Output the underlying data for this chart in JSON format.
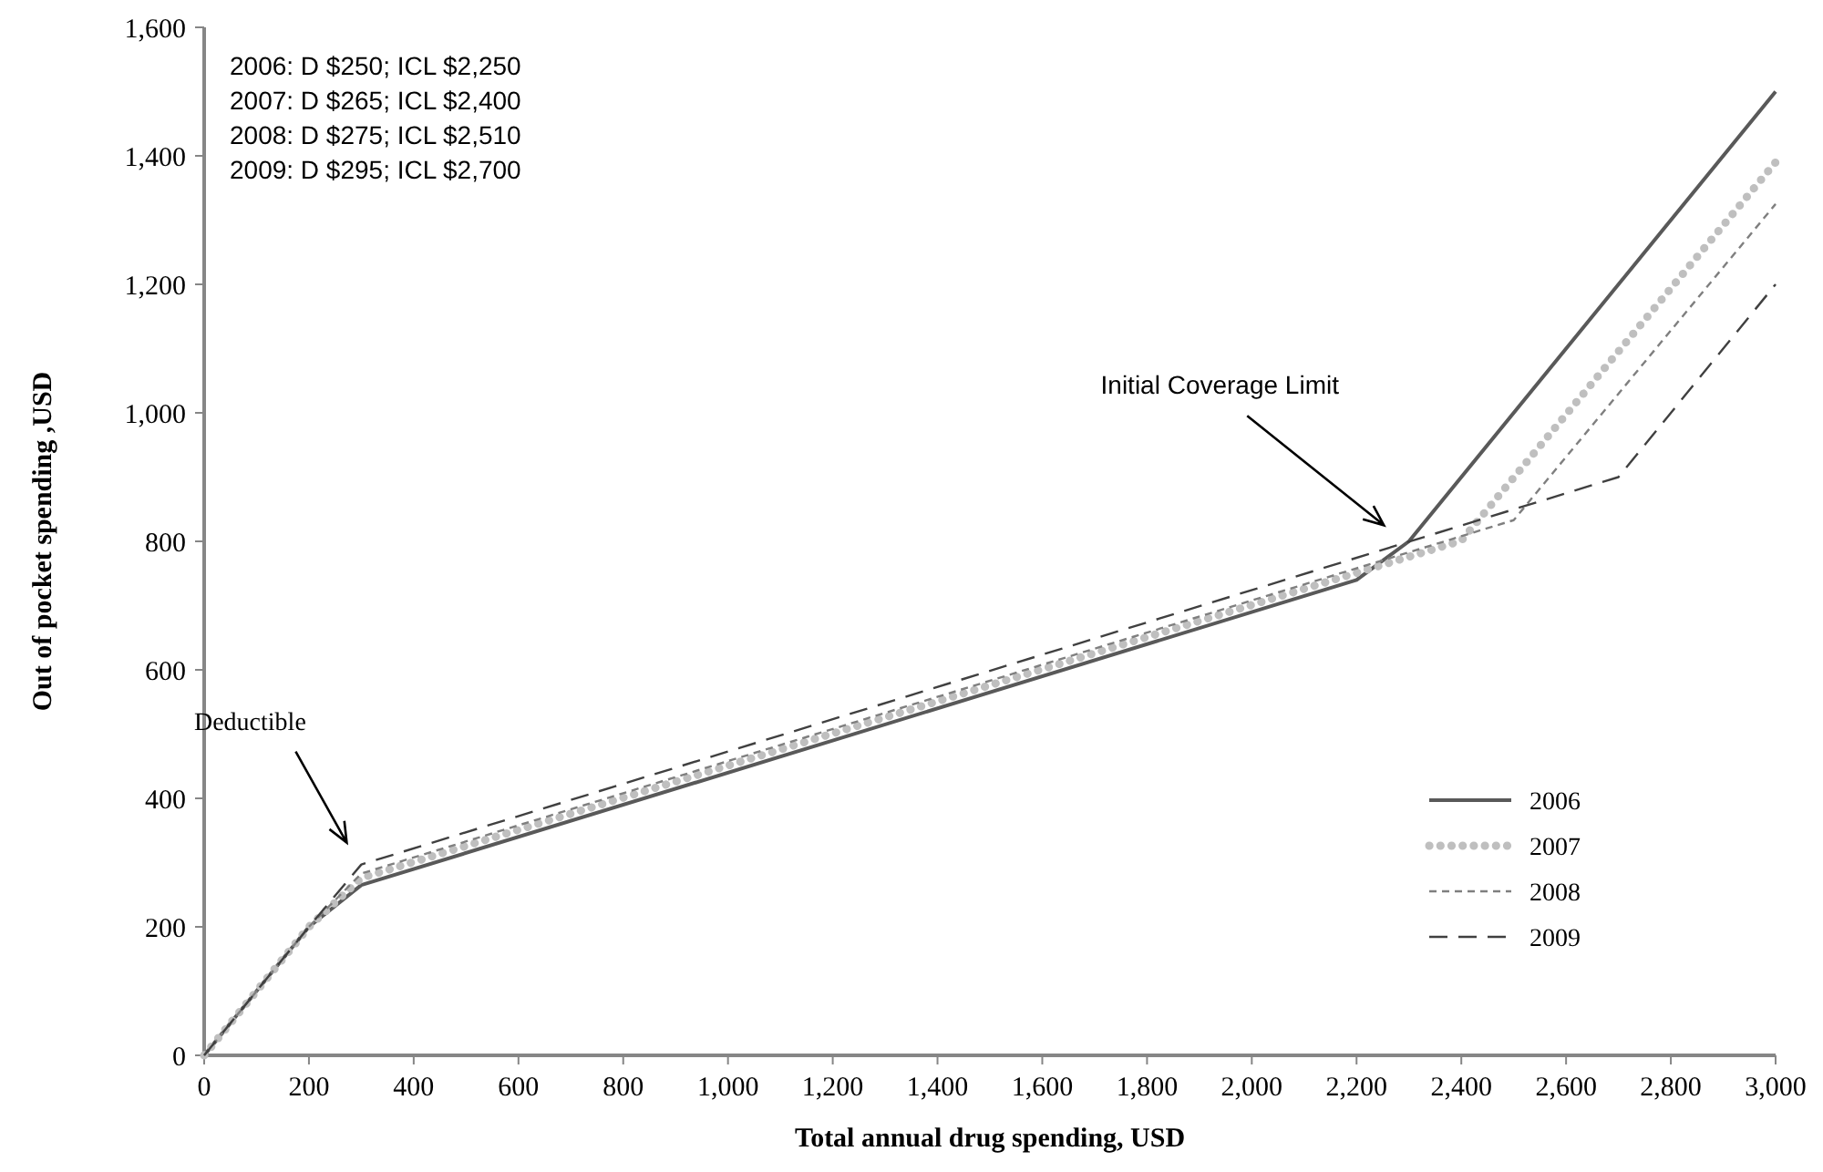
{
  "chart_data": {
    "type": "line",
    "xlabel": "Total annual drug spending, USD",
    "ylabel": "Out of pocket spending ,USD",
    "xlim": [
      0,
      3000
    ],
    "xticks": [
      0,
      {
        "value": 200,
        "label": "200"
      },
      {
        "value": 400,
        "label": "400"
      },
      {
        "value": 600,
        "label": "600"
      },
      {
        "value": 800,
        "label": "800"
      },
      {
        "value": 1000,
        "label": "1,000"
      },
      {
        "value": 1200,
        "label": "1,200"
      },
      {
        "value": 1400,
        "label": "1,400"
      },
      {
        "value": 1600,
        "label": "1,600"
      },
      {
        "value": 1800,
        "label": "1,800"
      },
      {
        "value": 2000,
        "label": "2,000"
      },
      {
        "value": 2200,
        "label": "2,200"
      },
      {
        "value": 2400,
        "label": "2,400"
      },
      {
        "value": 2600,
        "label": "2,600"
      },
      {
        "value": 2800,
        "label": "2,800"
      },
      {
        "value": 3000,
        "label": "3,000"
      }
    ],
    "ylim": [
      0,
      1600
    ],
    "yticks": [
      0,
      200,
      400,
      600,
      800,
      {
        "value": 1000,
        "label": "1,000"
      },
      {
        "value": 1200,
        "label": "1,200"
      },
      {
        "value": 1400,
        "label": "1,400"
      },
      {
        "value": 1600,
        "label": "1,600"
      }
    ],
    "grid": false,
    "legend": "bottom right",
    "series": [
      {
        "name": "2006",
        "color": "#595959",
        "line_style": "solid",
        "x": [
          0,
          200,
          300,
          2200,
          2300,
          3000
        ],
        "values": [
          0,
          200,
          265,
          740,
          800,
          1500
        ]
      },
      {
        "name": "2007",
        "color": "#bfbfbf",
        "line_style": "dotted",
        "x": [
          0,
          200,
          300,
          2400,
          3000
        ],
        "values": [
          0,
          200,
          276,
          801,
          1390
        ]
      },
      {
        "name": "2008",
        "color": "#7f7f7f",
        "line_style": "dashed",
        "x": [
          0,
          200,
          300,
          2500,
          3000
        ],
        "values": [
          0,
          200,
          283,
          833,
          1325
        ]
      },
      {
        "name": "2009",
        "color": "#404040",
        "line_style": "dashed",
        "x": [
          0,
          200,
          300,
          2700,
          3000
        ],
        "values": [
          0,
          200,
          297,
          900,
          1200
        ]
      }
    ],
    "annotations": [
      "2006: D $250;  ICL $2,250",
      "2007: D $265;  ICL $2,400",
      "2008: D $275;  ICL $2,510",
      "2009: D $295;  ICL $2,700",
      "Deductible",
      "Initial Coverage Limit"
    ]
  }
}
